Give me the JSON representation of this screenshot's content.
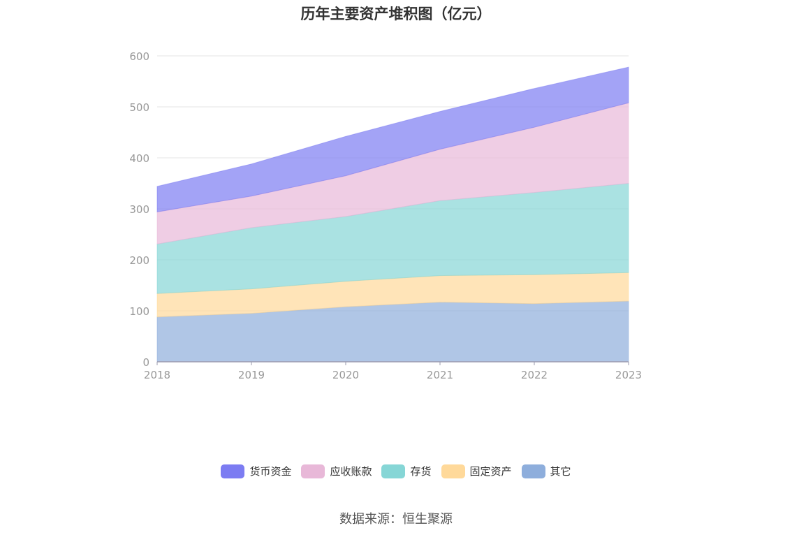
{
  "chart_data": {
    "type": "area",
    "stacked": true,
    "title": "历年主要资产堆积图（亿元）",
    "categories": [
      "2018",
      "2019",
      "2020",
      "2021",
      "2022",
      "2023"
    ],
    "ylim": [
      0,
      600
    ],
    "yticks": [
      0,
      100,
      200,
      300,
      400,
      500,
      600
    ],
    "grid": true,
    "legend_position": "bottom",
    "series": [
      {
        "name": "其它",
        "color": "#8EAEDC",
        "values": [
          88,
          95,
          108,
          117,
          114,
          119
        ]
      },
      {
        "name": "固定资产",
        "color": "#FFD99A",
        "values": [
          46,
          48,
          50,
          52,
          57,
          56
        ]
      },
      {
        "name": "存货",
        "color": "#86D6D6",
        "values": [
          97,
          120,
          127,
          147,
          161,
          175
        ]
      },
      {
        "name": "应收账款",
        "color": "#E8B8D8",
        "values": [
          63,
          62,
          80,
          101,
          128,
          158
        ]
      },
      {
        "name": "货币资金",
        "color": "#7C7CF2",
        "values": [
          50,
          63,
          77,
          74,
          76,
          70
        ]
      }
    ]
  },
  "legend_order": [
    "货币资金",
    "应收账款",
    "存货",
    "固定资产",
    "其它"
  ],
  "source": "数据来源：恒生聚源"
}
